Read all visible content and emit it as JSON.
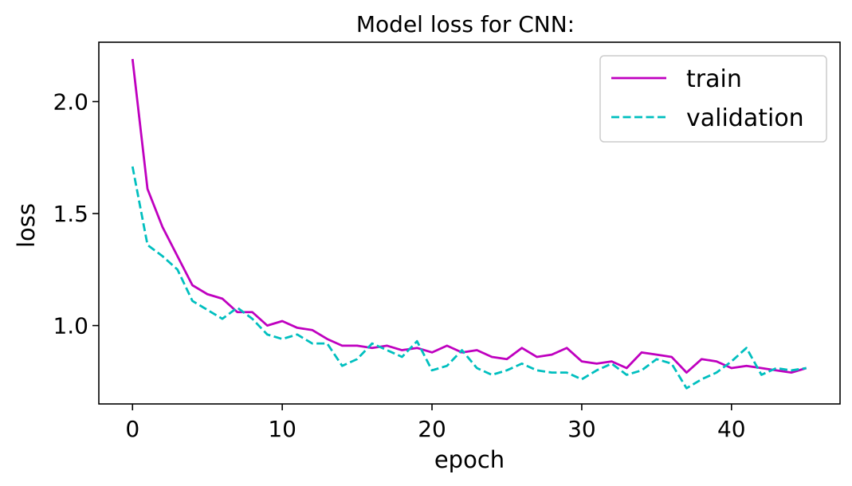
{
  "chart_data": {
    "type": "line",
    "title": "Model loss for CNN:",
    "xlabel": "epoch",
    "ylabel": "loss",
    "xlim": [
      -2.25,
      47.25
    ],
    "ylim": [
      0.65,
      2.265
    ],
    "xticks": [
      0,
      10,
      20,
      30,
      40
    ],
    "yticks": [
      1.0,
      1.5,
      2.0
    ],
    "xtick_labels": [
      "0",
      "10",
      "20",
      "30",
      "40"
    ],
    "ytick_labels": [
      "1.0",
      "1.5",
      "2.0"
    ],
    "grid": false,
    "legend_position": "top-right",
    "x": [
      0,
      1,
      2,
      3,
      4,
      5,
      6,
      7,
      8,
      9,
      10,
      11,
      12,
      13,
      14,
      15,
      16,
      17,
      18,
      19,
      20,
      21,
      22,
      23,
      24,
      25,
      26,
      27,
      28,
      29,
      30,
      31,
      32,
      33,
      34,
      35,
      36,
      37,
      38,
      39,
      40,
      41,
      42,
      43,
      44,
      45
    ],
    "series": [
      {
        "name": "train",
        "color": "#bf00bf",
        "style": "solid",
        "values": [
          2.19,
          1.61,
          1.44,
          1.31,
          1.18,
          1.14,
          1.12,
          1.06,
          1.06,
          1.0,
          1.02,
          0.99,
          0.98,
          0.94,
          0.91,
          0.91,
          0.9,
          0.91,
          0.89,
          0.9,
          0.88,
          0.91,
          0.88,
          0.89,
          0.86,
          0.85,
          0.9,
          0.86,
          0.87,
          0.9,
          0.84,
          0.83,
          0.84,
          0.81,
          0.88,
          0.87,
          0.86,
          0.79,
          0.85,
          0.84,
          0.81,
          0.82,
          0.81,
          0.8,
          0.79,
          0.81
        ]
      },
      {
        "name": "validation",
        "color": "#00bfbf",
        "style": "dashed",
        "values": [
          1.71,
          1.36,
          1.31,
          1.25,
          1.11,
          1.07,
          1.03,
          1.08,
          1.03,
          0.96,
          0.94,
          0.96,
          0.92,
          0.92,
          0.82,
          0.85,
          0.92,
          0.89,
          0.86,
          0.93,
          0.8,
          0.82,
          0.89,
          0.81,
          0.78,
          0.8,
          0.83,
          0.8,
          0.79,
          0.79,
          0.76,
          0.8,
          0.83,
          0.78,
          0.8,
          0.85,
          0.83,
          0.72,
          0.76,
          0.79,
          0.84,
          0.9,
          0.78,
          0.81,
          0.8,
          0.81
        ]
      }
    ]
  }
}
